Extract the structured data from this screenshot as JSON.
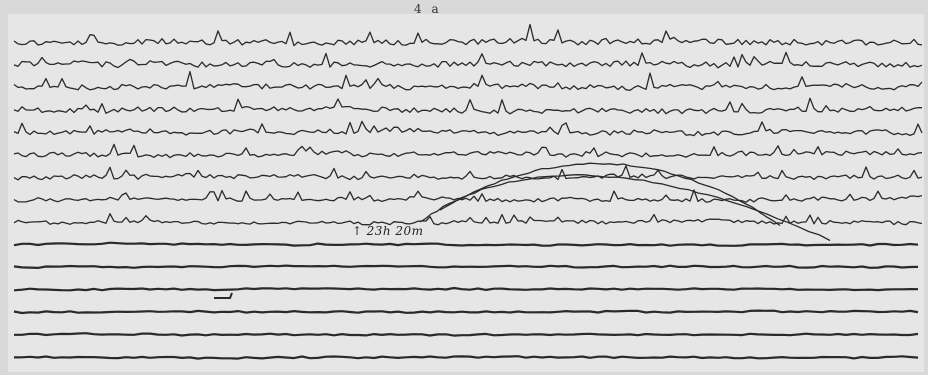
{
  "header": {
    "page_label": "4 a"
  },
  "record": {
    "time_mark_label": "23h 20m",
    "time_mark_arrow": "↑",
    "trace_count": 15,
    "ink_color": "#2a2a2a",
    "paper_color": "#e6e6e6",
    "background_color": "#d9d9d9"
  }
}
